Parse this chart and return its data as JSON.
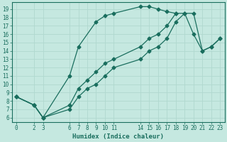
{
  "xlabel": "Humidex (Indice chaleur)",
  "background_color": "#c5e8e0",
  "grid_color": "#b0d8cf",
  "line_color": "#1a6e5e",
  "xlim": [
    -0.5,
    23.5
  ],
  "ylim": [
    5.5,
    19.8
  ],
  "xticks": [
    0,
    2,
    3,
    6,
    7,
    8,
    9,
    10,
    11,
    14,
    15,
    16,
    17,
    18,
    19,
    20,
    21,
    22,
    23
  ],
  "yticks": [
    6,
    7,
    8,
    9,
    10,
    11,
    12,
    13,
    14,
    15,
    16,
    17,
    18,
    19
  ],
  "lines": [
    {
      "x": [
        0,
        2,
        3,
        6,
        7,
        9,
        10,
        11,
        14,
        15,
        16,
        17,
        18
      ],
      "y": [
        8.5,
        7.5,
        6.0,
        11.0,
        14.5,
        17.5,
        18.2,
        18.5,
        19.3,
        19.3,
        19.0,
        18.7,
        18.5
      ]
    },
    {
      "x": [
        0,
        2,
        3,
        6,
        7,
        8,
        9,
        10,
        11,
        14,
        15,
        16,
        17,
        18,
        19,
        20,
        21,
        22,
        23
      ],
      "y": [
        8.5,
        7.5,
        6.0,
        7.5,
        9.5,
        10.5,
        11.5,
        12.5,
        13.0,
        14.5,
        15.5,
        16.0,
        17.0,
        18.5,
        18.5,
        16.0,
        14.0,
        14.5,
        15.5
      ]
    },
    {
      "x": [
        0,
        2,
        3,
        6,
        7,
        8,
        9,
        10,
        11,
        14,
        15,
        16,
        17,
        18,
        19,
        20,
        21,
        22,
        23
      ],
      "y": [
        8.5,
        7.5,
        6.0,
        7.0,
        8.5,
        9.5,
        10.0,
        11.0,
        12.0,
        13.0,
        14.0,
        14.5,
        15.5,
        17.5,
        18.5,
        18.5,
        14.0,
        14.5,
        15.5
      ]
    }
  ]
}
